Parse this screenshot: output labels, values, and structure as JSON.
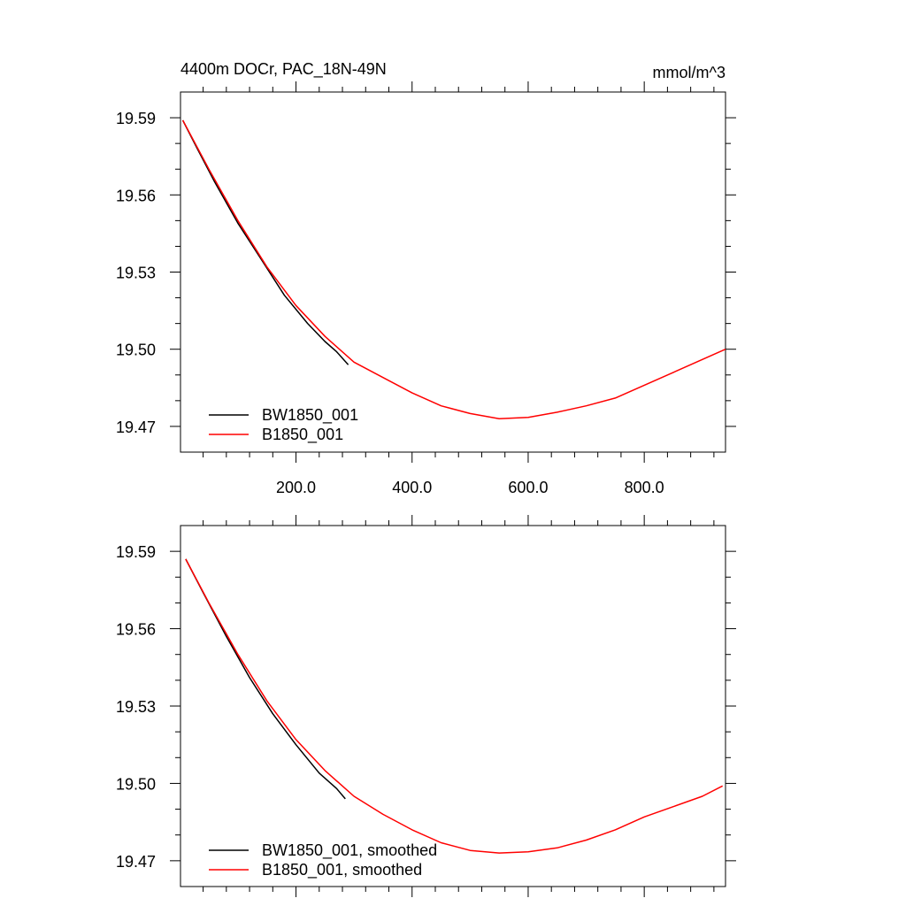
{
  "chart_data": [
    {
      "type": "line",
      "title_left": "4400m DOCr, PAC_18N-49N",
      "title_right": "mmol/m^3",
      "xlim": [
        1,
        940
      ],
      "ylim": [
        19.46,
        19.6
      ],
      "x_ticks": [
        200,
        400,
        600,
        800
      ],
      "x_tick_labels": [
        "200.0",
        "400.0",
        "600.0",
        "800.0"
      ],
      "y_ticks": [
        19.47,
        19.5,
        19.53,
        19.56,
        19.59
      ],
      "y_tick_labels": [
        "19.47",
        "19.50",
        "19.53",
        "19.56",
        "19.59"
      ],
      "legend_position": "bottom-left",
      "series": [
        {
          "name": "BW1850_001",
          "color": "#000000",
          "points": [
            [
              5,
              19.589
            ],
            [
              30,
              19.578
            ],
            [
              60,
              19.565
            ],
            [
              100,
              19.549
            ],
            [
              140,
              19.535
            ],
            [
              180,
              19.521
            ],
            [
              220,
              19.51
            ],
            [
              250,
              19.503
            ],
            [
              270,
              19.499
            ],
            [
              290,
              19.494
            ]
          ]
        },
        {
          "name": "B1850_001",
          "color": "#ff0000",
          "points": [
            [
              5,
              19.589
            ],
            [
              50,
              19.57
            ],
            [
              100,
              19.55
            ],
            [
              150,
              19.532
            ],
            [
              200,
              19.517
            ],
            [
              250,
              19.505
            ],
            [
              300,
              19.495
            ],
            [
              350,
              19.489
            ],
            [
              400,
              19.483
            ],
            [
              450,
              19.478
            ],
            [
              500,
              19.475
            ],
            [
              550,
              19.473
            ],
            [
              600,
              19.4735
            ],
            [
              650,
              19.4755
            ],
            [
              700,
              19.478
            ],
            [
              750,
              19.481
            ],
            [
              800,
              19.486
            ],
            [
              850,
              19.491
            ],
            [
              900,
              19.496
            ],
            [
              940,
              19.5
            ]
          ]
        }
      ]
    },
    {
      "type": "line",
      "xlim": [
        1,
        940
      ],
      "ylim": [
        19.46,
        19.6
      ],
      "x_ticks": [
        200,
        400,
        600,
        800
      ],
      "y_ticks": [
        19.47,
        19.5,
        19.53,
        19.56,
        19.59
      ],
      "y_tick_labels": [
        "19.47",
        "19.50",
        "19.53",
        "19.56",
        "19.59"
      ],
      "legend_position": "bottom-left",
      "series": [
        {
          "name": "BW1850_001, smoothed",
          "color": "#000000",
          "points": [
            [
              10,
              19.587
            ],
            [
              40,
              19.574
            ],
            [
              80,
              19.557
            ],
            [
              120,
              19.541
            ],
            [
              160,
              19.527
            ],
            [
              200,
              19.515
            ],
            [
              240,
              19.504
            ],
            [
              270,
              19.498
            ],
            [
              285,
              19.494
            ]
          ]
        },
        {
          "name": "B1850_001, smoothed",
          "color": "#ff0000",
          "points": [
            [
              10,
              19.587
            ],
            [
              50,
              19.57
            ],
            [
              100,
              19.55
            ],
            [
              150,
              19.532
            ],
            [
              200,
              19.517
            ],
            [
              250,
              19.505
            ],
            [
              300,
              19.495
            ],
            [
              350,
              19.488
            ],
            [
              400,
              19.482
            ],
            [
              450,
              19.477
            ],
            [
              500,
              19.474
            ],
            [
              550,
              19.473
            ],
            [
              600,
              19.4735
            ],
            [
              650,
              19.475
            ],
            [
              700,
              19.478
            ],
            [
              750,
              19.482
            ],
            [
              800,
              19.487
            ],
            [
              850,
              19.491
            ],
            [
              900,
              19.495
            ],
            [
              935,
              19.499
            ]
          ]
        }
      ]
    }
  ]
}
